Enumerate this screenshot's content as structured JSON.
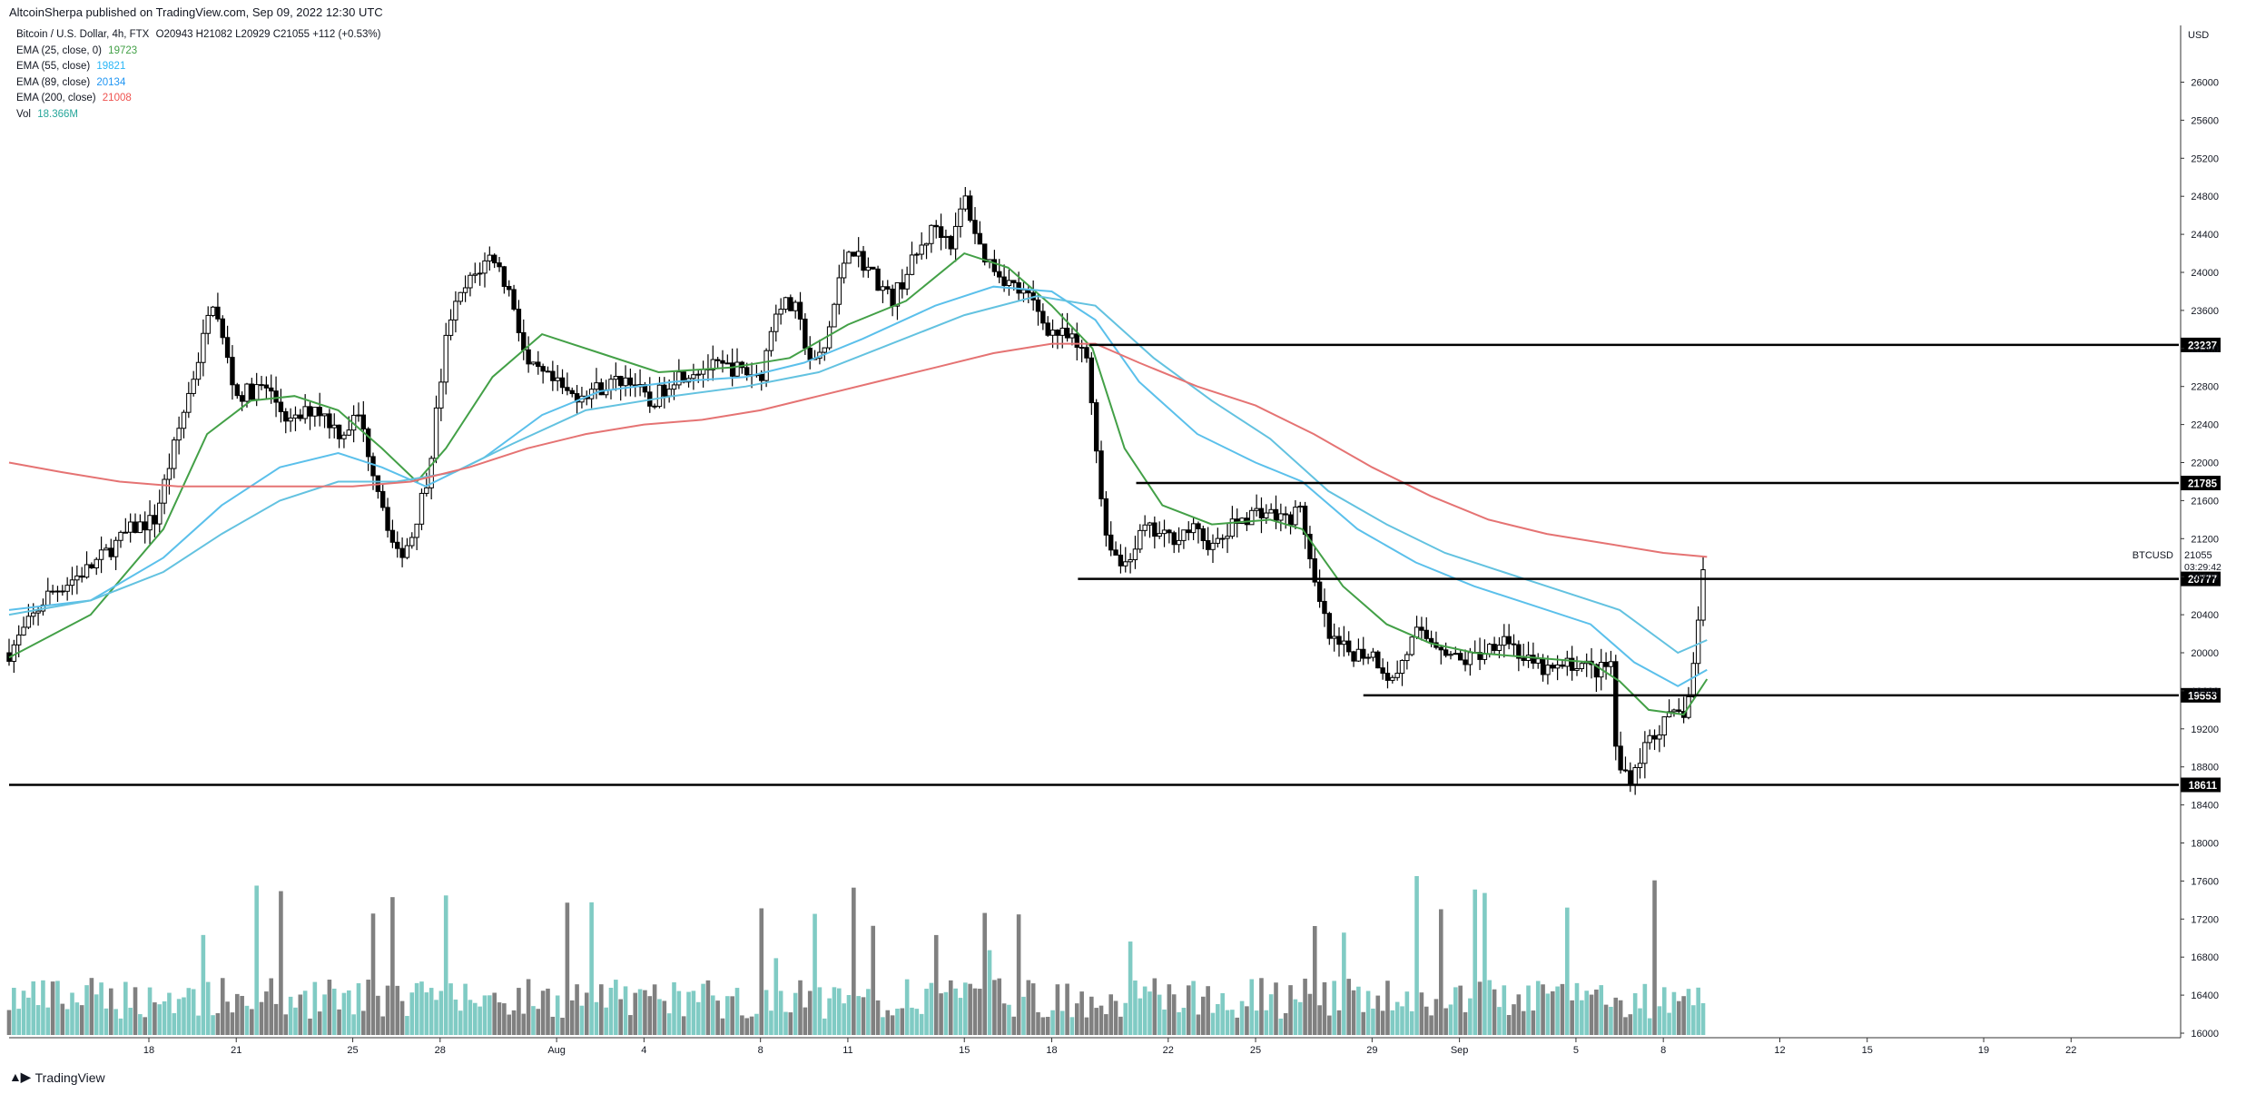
{
  "header": {
    "published_line": "AltcoinSherpa published on TradingView.com, Sep 09, 2022 12:30 UTC",
    "symbol_line": "Bitcoin / U.S. Dollar, 4h, FTX",
    "ohlc": "O20943 H21082 L20929 C21055 +112 (+0.53%)",
    "indicators": [
      {
        "label": "EMA (25, close, 0)",
        "value": "19723",
        "color": "#43a047"
      },
      {
        "label": "EMA (55, close)",
        "value": "19821",
        "color": "#29b6f6"
      },
      {
        "label": "EMA (89, close)",
        "value": "20134",
        "color": "#2196f3"
      },
      {
        "label": "EMA (200, close)",
        "value": "21008",
        "color": "#ef5350"
      },
      {
        "label": "Vol",
        "value": "18.366M",
        "color": "#26a69a"
      }
    ]
  },
  "footer": {
    "brand": "TradingView",
    "icon": "tradingview-logo-icon"
  },
  "chart_data": {
    "type": "candlestick",
    "symbol": "BTCUSD",
    "timeframe": "4h",
    "currency": "USD",
    "last_price": "21055",
    "countdown": "03:29:42",
    "price_range": [
      16000,
      26400
    ],
    "price_ticks": [
      16000,
      16400,
      16800,
      17200,
      17600,
      18000,
      18400,
      18800,
      19200,
      19600,
      20000,
      20400,
      20800,
      21200,
      21600,
      22000,
      22400,
      22800,
      23200,
      23600,
      24000,
      24400,
      24800,
      25200,
      25600,
      26000
    ],
    "x_ticks": [
      {
        "label": "18",
        "day": 18
      },
      {
        "label": "21",
        "day": 21
      },
      {
        "label": "25",
        "day": 25
      },
      {
        "label": "28",
        "day": 28
      },
      {
        "label": "Aug",
        "day": 32
      },
      {
        "label": "4",
        "day": 35
      },
      {
        "label": "8",
        "day": 39
      },
      {
        "label": "11",
        "day": 42
      },
      {
        "label": "15",
        "day": 46
      },
      {
        "label": "18",
        "day": 49
      },
      {
        "label": "22",
        "day": 53
      },
      {
        "label": "25",
        "day": 56
      },
      {
        "label": "29",
        "day": 60
      },
      {
        "label": "Sep",
        "day": 63
      },
      {
        "label": "5",
        "day": 67
      },
      {
        "label": "8",
        "day": 70
      },
      {
        "label": "12",
        "day": 74
      },
      {
        "label": "15",
        "day": 77
      },
      {
        "label": "19",
        "day": 81
      },
      {
        "label": "22",
        "day": 84
      }
    ],
    "x_range_days": [
      13.2,
      87.7
    ],
    "price_path": [
      [
        13.2,
        20000
      ],
      [
        14.5,
        20600
      ],
      [
        16.0,
        20900
      ],
      [
        17.4,
        21300
      ],
      [
        18.2,
        21400
      ],
      [
        18.9,
        22200
      ],
      [
        19.7,
        23100
      ],
      [
        20.2,
        23700
      ],
      [
        21.0,
        22700
      ],
      [
        22.0,
        22800
      ],
      [
        22.9,
        22400
      ],
      [
        23.7,
        22600
      ],
      [
        24.6,
        22300
      ],
      [
        25.2,
        22500
      ],
      [
        26.0,
        21600
      ],
      [
        26.5,
        21000
      ],
      [
        27.0,
        21200
      ],
      [
        27.6,
        21900
      ],
      [
        28.3,
        23500
      ],
      [
        29.0,
        23900
      ],
      [
        29.8,
        24200
      ],
      [
        30.5,
        23700
      ],
      [
        31.0,
        23000
      ],
      [
        31.6,
        22900
      ],
      [
        32.5,
        22700
      ],
      [
        33.6,
        22800
      ],
      [
        34.5,
        22900
      ],
      [
        35.2,
        22600
      ],
      [
        36.0,
        22900
      ],
      [
        37.0,
        23000
      ],
      [
        38.0,
        23000
      ],
      [
        39.0,
        22900
      ],
      [
        39.6,
        23700
      ],
      [
        40.2,
        23600
      ],
      [
        40.8,
        23000
      ],
      [
        41.2,
        23200
      ],
      [
        42.0,
        24300
      ],
      [
        42.8,
        24000
      ],
      [
        43.5,
        23700
      ],
      [
        44.2,
        24100
      ],
      [
        45.0,
        24500
      ],
      [
        45.6,
        24300
      ],
      [
        46.0,
        24800
      ],
      [
        46.6,
        24200
      ],
      [
        47.5,
        23900
      ],
      [
        48.3,
        23700
      ],
      [
        48.9,
        23400
      ],
      [
        49.6,
        23300
      ],
      [
        50.2,
        23100
      ],
      [
        50.5,
        22300
      ],
      [
        50.8,
        21300
      ],
      [
        51.4,
        20900
      ],
      [
        52.2,
        21300
      ],
      [
        53.0,
        21200
      ],
      [
        53.8,
        21300
      ],
      [
        54.6,
        21100
      ],
      [
        55.4,
        21400
      ],
      [
        56.2,
        21500
      ],
      [
        57.0,
        21400
      ],
      [
        57.6,
        21500
      ],
      [
        58.0,
        20700
      ],
      [
        58.6,
        20100
      ],
      [
        59.3,
        20000
      ],
      [
        60.0,
        20000
      ],
      [
        60.7,
        19700
      ],
      [
        61.5,
        20200
      ],
      [
        62.3,
        20100
      ],
      [
        63.0,
        19900
      ],
      [
        63.8,
        20000
      ],
      [
        64.5,
        20200
      ],
      [
        65.3,
        19900
      ],
      [
        66.1,
        19800
      ],
      [
        67.0,
        19900
      ],
      [
        67.8,
        19800
      ],
      [
        68.2,
        19900
      ],
      [
        68.4,
        18800
      ],
      [
        68.9,
        18700
      ],
      [
        69.5,
        19100
      ],
      [
        70.2,
        19300
      ],
      [
        70.8,
        19400
      ],
      [
        71.1,
        20000
      ],
      [
        71.3,
        20700
      ],
      [
        71.5,
        21055
      ]
    ],
    "ema_series": [
      {
        "key": "ema25",
        "color": "#43a047",
        "values": [
          [
            13.2,
            19950
          ],
          [
            16,
            20400
          ],
          [
            18.5,
            21300
          ],
          [
            20,
            22300
          ],
          [
            21.5,
            22650
          ],
          [
            23,
            22700
          ],
          [
            24.5,
            22550
          ],
          [
            26,
            22150
          ],
          [
            27.2,
            21800
          ],
          [
            28.2,
            22150
          ],
          [
            29.8,
            22900
          ],
          [
            31.5,
            23350
          ],
          [
            33.5,
            23150
          ],
          [
            35.5,
            22950
          ],
          [
            38,
            23000
          ],
          [
            40,
            23100
          ],
          [
            42,
            23450
          ],
          [
            44,
            23700
          ],
          [
            46,
            24200
          ],
          [
            47.5,
            24050
          ],
          [
            49,
            23650
          ],
          [
            50.4,
            23200
          ],
          [
            51.5,
            22150
          ],
          [
            52.8,
            21550
          ],
          [
            54.5,
            21350
          ],
          [
            56.5,
            21400
          ],
          [
            57.6,
            21300
          ],
          [
            59,
            20700
          ],
          [
            60.5,
            20300
          ],
          [
            62,
            20100
          ],
          [
            63.5,
            20000
          ],
          [
            65.5,
            19950
          ],
          [
            67.5,
            19900
          ],
          [
            68.5,
            19700
          ],
          [
            69.5,
            19400
          ],
          [
            70.7,
            19350
          ],
          [
            71.5,
            19723
          ]
        ]
      },
      {
        "key": "ema55",
        "color": "#5bc0eb",
        "values": [
          [
            13.2,
            20450
          ],
          [
            16,
            20550
          ],
          [
            18.5,
            21000
          ],
          [
            20.5,
            21550
          ],
          [
            22.5,
            21950
          ],
          [
            24.5,
            22100
          ],
          [
            26,
            21950
          ],
          [
            27.5,
            21750
          ],
          [
            29.5,
            22050
          ],
          [
            31.5,
            22500
          ],
          [
            33.5,
            22750
          ],
          [
            36,
            22850
          ],
          [
            38.5,
            22900
          ],
          [
            40.5,
            23050
          ],
          [
            42.5,
            23300
          ],
          [
            45,
            23650
          ],
          [
            47,
            23850
          ],
          [
            49,
            23800
          ],
          [
            50.5,
            23500
          ],
          [
            52,
            22850
          ],
          [
            54,
            22300
          ],
          [
            56,
            22000
          ],
          [
            57.6,
            21800
          ],
          [
            59.5,
            21300
          ],
          [
            61.5,
            20950
          ],
          [
            63.5,
            20700
          ],
          [
            65.5,
            20500
          ],
          [
            67.5,
            20300
          ],
          [
            69,
            19900
          ],
          [
            70.5,
            19650
          ],
          [
            71.5,
            19821
          ]
        ]
      },
      {
        "key": "ema89",
        "color": "#63c2e0",
        "values": [
          [
            13.2,
            20400
          ],
          [
            16,
            20550
          ],
          [
            18.5,
            20850
          ],
          [
            20.5,
            21250
          ],
          [
            22.5,
            21600
          ],
          [
            24.5,
            21800
          ],
          [
            26.5,
            21800
          ],
          [
            28.5,
            21900
          ],
          [
            30.5,
            22200
          ],
          [
            33,
            22550
          ],
          [
            36,
            22700
          ],
          [
            38.5,
            22800
          ],
          [
            41,
            22950
          ],
          [
            43.5,
            23250
          ],
          [
            46,
            23550
          ],
          [
            48.5,
            23750
          ],
          [
            50.5,
            23650
          ],
          [
            52.5,
            23100
          ],
          [
            54.5,
            22650
          ],
          [
            56.5,
            22250
          ],
          [
            58.5,
            21700
          ],
          [
            60.5,
            21350
          ],
          [
            62.5,
            21050
          ],
          [
            64.5,
            20850
          ],
          [
            66.5,
            20650
          ],
          [
            68.5,
            20450
          ],
          [
            70.5,
            20000
          ],
          [
            71.5,
            20134
          ]
        ]
      },
      {
        "key": "ema200",
        "color": "#e57373",
        "values": [
          [
            13.2,
            22000
          ],
          [
            15,
            21900
          ],
          [
            17,
            21800
          ],
          [
            19,
            21750
          ],
          [
            21,
            21750
          ],
          [
            23,
            21750
          ],
          [
            25,
            21750
          ],
          [
            27,
            21800
          ],
          [
            29,
            21950
          ],
          [
            31,
            22150
          ],
          [
            33,
            22300
          ],
          [
            35,
            22400
          ],
          [
            37,
            22450
          ],
          [
            39,
            22550
          ],
          [
            41,
            22700
          ],
          [
            43,
            22850
          ],
          [
            45,
            23000
          ],
          [
            47,
            23150
          ],
          [
            49,
            23250
          ],
          [
            50.5,
            23250
          ],
          [
            52,
            23050
          ],
          [
            54,
            22800
          ],
          [
            56,
            22600
          ],
          [
            58,
            22300
          ],
          [
            60,
            21950
          ],
          [
            62,
            21650
          ],
          [
            64,
            21400
          ],
          [
            66,
            21250
          ],
          [
            68,
            21150
          ],
          [
            70,
            21050
          ],
          [
            71.5,
            21008
          ]
        ]
      }
    ],
    "levels": [
      {
        "label": "23237",
        "price": 23237,
        "start_day": 50.3
      },
      {
        "label": "21785",
        "price": 21785,
        "start_day": 51.9
      },
      {
        "label": "20777",
        "price": 20777,
        "start_day": 49.9
      },
      {
        "label": "19553",
        "price": 19553,
        "start_day": 59.7
      },
      {
        "label": "18611",
        "price": 18611,
        "start_day": 13.2
      }
    ],
    "volume_note": "volume bars shown in lower pane (teal = up, gray = down)"
  }
}
